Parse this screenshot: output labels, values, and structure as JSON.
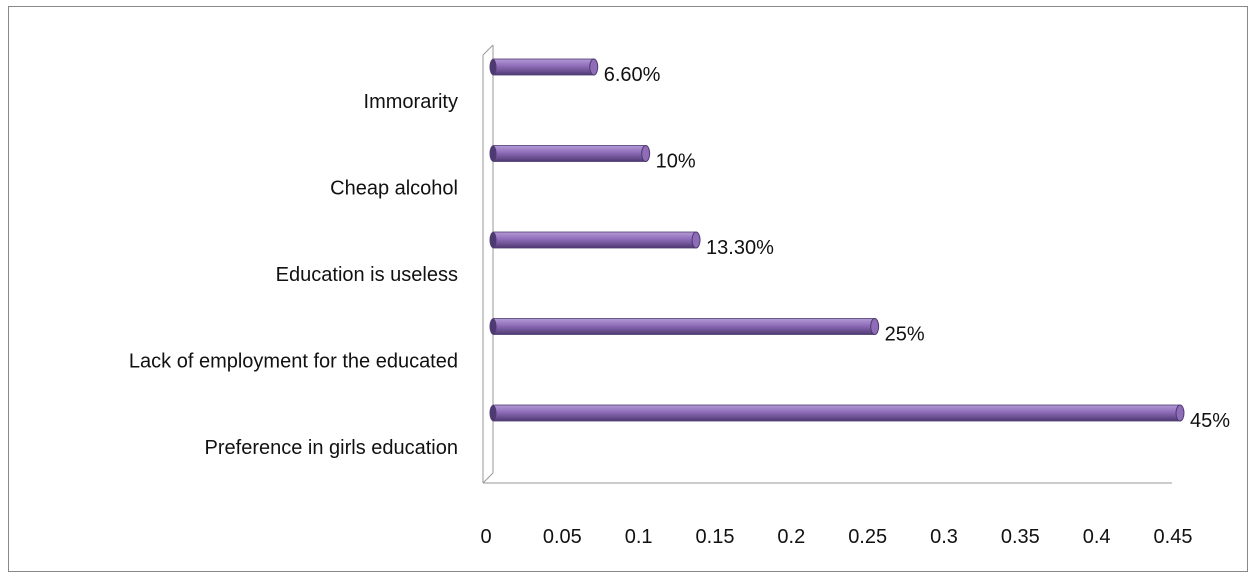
{
  "chart_data": {
    "type": "bar",
    "orientation": "horizontal",
    "categories": [
      "Immorarity",
      "Cheap alcohol",
      "Education is useless",
      "Lack of employment for the educated",
      "Preference in girls education"
    ],
    "values": [
      0.066,
      0.1,
      0.133,
      0.25,
      0.45
    ],
    "data_labels": [
      "6.60%",
      "10%",
      "13.30%",
      "25%",
      "45%"
    ],
    "x_ticks": [
      "0",
      "0.05",
      "0.1",
      "0.15",
      "0.2",
      "0.25",
      "0.3",
      "0.35",
      "0.4",
      "0.45"
    ],
    "xlim": [
      0,
      0.45
    ],
    "grid": false,
    "legend": "none",
    "title": "",
    "xlabel": "",
    "ylabel": "",
    "colors": {
      "bar": "#8e6cb8",
      "bar_dark": "#4e3a72",
      "bar_light": "#b49ad6",
      "axis": "#999999"
    }
  }
}
